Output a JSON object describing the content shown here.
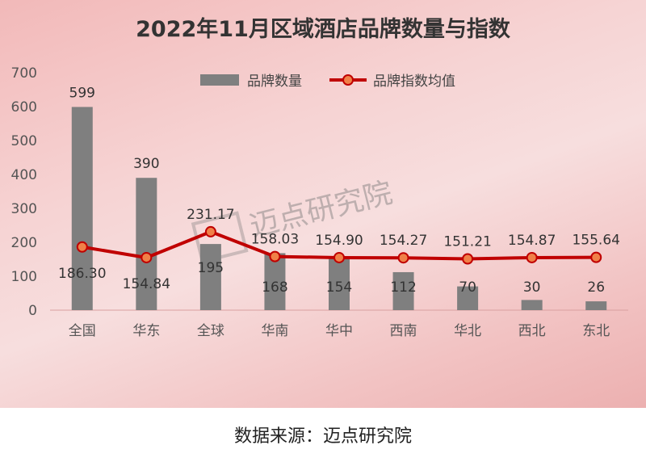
{
  "chart_data": {
    "type": "bar",
    "title": "2022年11月区域酒店品牌数量与指数",
    "categories": [
      "全国",
      "华东",
      "全球",
      "华南",
      "华中",
      "西南",
      "华北",
      "西北",
      "东北"
    ],
    "series": [
      {
        "name": "品牌数量",
        "type": "bar",
        "color": "#7f7f7f",
        "values": [
          599,
          390,
          195,
          168,
          154,
          112,
          70,
          30,
          26
        ]
      },
      {
        "name": "品牌指数均值",
        "type": "line",
        "color": "#c00000",
        "marker_color": "#f08048",
        "values": [
          186.3,
          154.84,
          231.17,
          158.03,
          154.9,
          154.27,
          151.21,
          154.87,
          155.64
        ]
      }
    ],
    "bar_labels": [
      "599",
      "390",
      "195",
      "168",
      "154",
      "112",
      "70",
      "30",
      "26"
    ],
    "line_labels": [
      "186.30",
      "154.84",
      "231.17",
      "158.03",
      "154.90",
      "154.27",
      "151.21",
      "154.87",
      "155.64"
    ],
    "ylim": [
      0,
      700
    ],
    "yticks": [
      0,
      100,
      200,
      300,
      400,
      500,
      600,
      700
    ],
    "legend_position": "top",
    "grid": false
  },
  "watermark": "迈点研究院",
  "source": "数据来源：迈点研究院"
}
